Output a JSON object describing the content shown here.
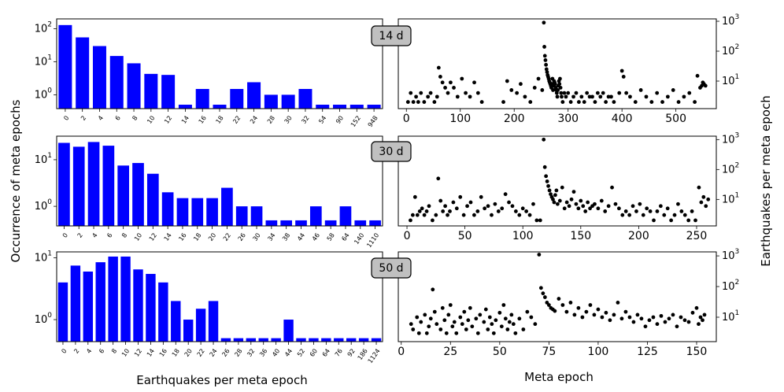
{
  "labels": {
    "left_ylabel": "Occurrence of meta epochs",
    "right_ylabel": "Earthquakes per meta epoch",
    "left_xlabel": "Earthquakes per meta epoch",
    "right_xlabel": "Meta epoch"
  },
  "colors": {
    "bar": "#0000ff",
    "point": "#000000",
    "badge": "#c0c0c0"
  },
  "chart_data": [
    {
      "type": "bar",
      "scale": "log",
      "ylim": [
        0.38,
        200
      ],
      "panel_label": "14 d",
      "categories": [
        "0",
        "2",
        "4",
        "6",
        "8",
        "10",
        "12",
        "14",
        "16",
        "18",
        "22",
        "24",
        "28",
        "30",
        "32",
        "54",
        "90",
        "152",
        "948"
      ],
      "values": [
        130,
        55,
        30,
        15,
        9,
        4.3,
        4,
        0.5,
        1.5,
        0.5,
        1.5,
        2.4,
        1,
        1,
        1.5,
        0.5,
        0.5,
        0.5,
        0.5
      ],
      "yticks": [
        {
          "label": "10",
          "exp": "0",
          "v": 1
        },
        {
          "label": "10",
          "exp": "1",
          "v": 10
        },
        {
          "label": "10",
          "exp": "2",
          "v": 100
        }
      ]
    },
    {
      "type": "bar",
      "scale": "log",
      "ylim": [
        0.38,
        32
      ],
      "panel_label": "30 d",
      "categories": [
        "0",
        "2",
        "4",
        "6",
        "8",
        "10",
        "12",
        "14",
        "16",
        "18",
        "20",
        "22",
        "26",
        "30",
        "34",
        "38",
        "44",
        "46",
        "58",
        "64",
        "140",
        "1110"
      ],
      "values": [
        23,
        19,
        24,
        20,
        7.5,
        8.5,
        5,
        2,
        1.5,
        1.5,
        1.5,
        2.5,
        1,
        1,
        0.5,
        0.5,
        0.5,
        1,
        0.5,
        1,
        0.5,
        0.5
      ],
      "yticks": [
        {
          "label": "10",
          "exp": "0",
          "v": 1
        },
        {
          "label": "10",
          "exp": "1",
          "v": 10
        }
      ]
    },
    {
      "type": "bar",
      "scale": "log",
      "ylim": [
        0.44,
        12.5
      ],
      "categories": [
        "0",
        "2",
        "4",
        "6",
        "8",
        "10",
        "12",
        "14",
        "16",
        "18",
        "20",
        "22",
        "24",
        "26",
        "28",
        "32",
        "36",
        "40",
        "44",
        "52",
        "60",
        "64",
        "76",
        "92",
        "186",
        "1124"
      ],
      "values": [
        4,
        7.5,
        6,
        8.5,
        10.5,
        10.5,
        6.5,
        5.5,
        4,
        2,
        1,
        1.5,
        2,
        0.5,
        0.5,
        0.5,
        0.5,
        0.5,
        1,
        0.5,
        0.5,
        0.5,
        0.5,
        0.5,
        0.5,
        0.5
      ],
      "yticks": [
        {
          "label": "10",
          "exp": "0",
          "v": 1
        },
        {
          "label": "10",
          "exp": "1",
          "v": 10
        }
      ]
    },
    {
      "type": "scatter",
      "scale": "log",
      "xlim": [
        -15,
        575
      ],
      "ylim": [
        1.2,
        1200
      ],
      "xticks": [
        0,
        100,
        200,
        300,
        400,
        500
      ],
      "yticks": [
        {
          "label": "10",
          "exp": "1",
          "v": 10
        },
        {
          "label": "10",
          "exp": "2",
          "v": 100
        },
        {
          "label": "10",
          "exp": "3",
          "v": 1000
        }
      ],
      "x": [
        3,
        8,
        13,
        18,
        22,
        27,
        33,
        40,
        45,
        52,
        57,
        60,
        63,
        67,
        72,
        77,
        82,
        88,
        95,
        103,
        110,
        118,
        126,
        133,
        140,
        180,
        187,
        195,
        205,
        212,
        220,
        230,
        238,
        245,
        252,
        255,
        256,
        257,
        258,
        259,
        260,
        261,
        262,
        263,
        264,
        265,
        266,
        267,
        268,
        269,
        270,
        271,
        272,
        273,
        274,
        275,
        276,
        277,
        278,
        279,
        280,
        281,
        282,
        283,
        284,
        285,
        286,
        287,
        288,
        290,
        293,
        296,
        300,
        305,
        310,
        315,
        320,
        325,
        330,
        335,
        340,
        345,
        350,
        355,
        360,
        365,
        370,
        375,
        380,
        385,
        395,
        400,
        403,
        408,
        415,
        425,
        435,
        445,
        455,
        465,
        475,
        485,
        495,
        505,
        515,
        525,
        535,
        540,
        545,
        548,
        550,
        552,
        555
      ],
      "y": [
        2,
        4,
        2,
        3,
        2,
        4,
        2,
        3,
        4,
        2,
        3,
        28,
        14,
        9,
        6,
        4,
        9,
        6,
        3,
        12,
        4,
        3,
        9,
        4,
        2,
        2,
        10,
        5,
        4,
        8,
        3,
        2,
        6,
        12,
        5,
        900,
        140,
        70,
        50,
        35,
        25,
        20,
        16,
        14,
        12,
        10,
        9,
        8,
        7,
        6,
        8,
        12,
        5,
        7,
        10,
        9,
        8,
        6,
        5,
        4,
        3,
        5,
        7,
        10,
        8,
        12,
        6,
        4,
        3,
        2,
        4,
        3,
        4,
        2,
        3,
        4,
        2,
        3,
        2,
        4,
        3,
        3,
        2,
        4,
        3,
        4,
        2,
        3,
        3,
        2,
        4,
        22,
        14,
        4,
        3,
        2,
        5,
        3,
        2,
        4,
        2,
        3,
        5,
        2,
        3,
        4,
        2,
        15,
        6,
        7,
        9,
        8,
        7
      ]
    },
    {
      "type": "scatter",
      "scale": "log",
      "xlim": [
        -7.5,
        267
      ],
      "ylim": [
        1.3,
        1300
      ],
      "xticks": [
        0,
        50,
        100,
        150,
        200,
        250
      ],
      "yticks": [
        {
          "label": "10",
          "exp": "1",
          "v": 10
        },
        {
          "label": "10",
          "exp": "2",
          "v": 100
        },
        {
          "label": "10",
          "exp": "3",
          "v": 1000
        }
      ],
      "x": [
        3,
        5,
        7,
        9,
        11,
        13,
        15,
        17,
        19,
        22,
        25,
        27,
        29,
        31,
        33,
        35,
        37,
        40,
        43,
        46,
        49,
        52,
        55,
        58,
        61,
        64,
        67,
        70,
        73,
        76,
        79,
        82,
        85,
        88,
        91,
        94,
        97,
        100,
        103,
        106,
        109,
        112,
        115,
        118,
        119,
        120,
        121,
        122,
        123,
        124,
        125,
        126,
        127,
        128,
        129,
        130,
        132,
        134,
        136,
        138,
        140,
        142,
        144,
        146,
        148,
        150,
        152,
        154,
        156,
        158,
        160,
        162,
        165,
        168,
        171,
        174,
        177,
        180,
        183,
        186,
        189,
        192,
        195,
        198,
        201,
        204,
        207,
        210,
        213,
        216,
        219,
        222,
        225,
        228,
        231,
        234,
        237,
        240,
        243,
        246,
        249,
        252,
        254,
        256,
        258,
        260
      ],
      "y": [
        2,
        3,
        12,
        3,
        4,
        5,
        3,
        4,
        6,
        2,
        3,
        50,
        9,
        4,
        6,
        3,
        4,
        8,
        5,
        12,
        3,
        6,
        8,
        3,
        4,
        12,
        5,
        6,
        3,
        7,
        4,
        5,
        15,
        8,
        6,
        4,
        3,
        5,
        4,
        3,
        7,
        2,
        2,
        1000,
        120,
        60,
        40,
        28,
        20,
        15,
        12,
        10,
        8,
        14,
        20,
        7,
        9,
        25,
        5,
        8,
        6,
        10,
        18,
        7,
        5,
        9,
        6,
        4,
        8,
        5,
        6,
        7,
        5,
        9,
        4,
        6,
        25,
        7,
        5,
        3,
        4,
        3,
        6,
        4,
        7,
        3,
        5,
        4,
        2,
        4,
        6,
        3,
        5,
        2,
        3,
        7,
        4,
        3,
        2,
        4,
        2,
        25,
        8,
        12,
        6,
        10
      ]
    },
    {
      "type": "scatter",
      "scale": "log",
      "xlim": [
        -1.5,
        160
      ],
      "ylim": [
        1.6,
        1350
      ],
      "xticks": [
        0,
        25,
        50,
        75,
        100,
        125,
        150
      ],
      "yticks": [
        {
          "label": "10",
          "exp": "1",
          "v": 10
        },
        {
          "label": "10",
          "exp": "2",
          "v": 100
        },
        {
          "label": "10",
          "exp": "3",
          "v": 1000
        }
      ],
      "panel_label": "50 d",
      "x": [
        5,
        6,
        8,
        9,
        10,
        12,
        13,
        14,
        15,
        16,
        17,
        18,
        20,
        21,
        22,
        23,
        24,
        25,
        26,
        27,
        28,
        30,
        31,
        32,
        33,
        34,
        35,
        36,
        38,
        39,
        40,
        42,
        43,
        44,
        45,
        46,
        47,
        48,
        50,
        51,
        52,
        53,
        54,
        55,
        56,
        57,
        58,
        60,
        62,
        64,
        66,
        68,
        70,
        71,
        72,
        73,
        74,
        75,
        76,
        77,
        78,
        80,
        82,
        84,
        86,
        88,
        90,
        92,
        94,
        96,
        98,
        100,
        102,
        104,
        106,
        108,
        110,
        112,
        114,
        116,
        118,
        120,
        122,
        124,
        126,
        128,
        130,
        132,
        134,
        136,
        138,
        140,
        142,
        144,
        146,
        148,
        150,
        151,
        152,
        153,
        154
      ],
      "y": [
        6,
        4,
        10,
        3,
        7,
        12,
        3,
        5,
        9,
        80,
        15,
        6,
        4,
        20,
        8,
        3,
        12,
        25,
        5,
        7,
        3,
        10,
        6,
        15,
        4,
        8,
        20,
        5,
        9,
        3,
        12,
        7,
        18,
        4,
        10,
        6,
        3,
        8,
        14,
        5,
        25,
        9,
        4,
        7,
        12,
        6,
        3,
        9,
        4,
        15,
        10,
        6,
        1100,
        90,
        60,
        45,
        30,
        25,
        20,
        18,
        16,
        40,
        25,
        15,
        30,
        12,
        20,
        10,
        15,
        25,
        12,
        18,
        10,
        14,
        8,
        12,
        30,
        9,
        15,
        10,
        7,
        12,
        9,
        5,
        8,
        10,
        6,
        11,
        7,
        9,
        12,
        5,
        10,
        8,
        7,
        14,
        20,
        6,
        10,
        8,
        12
      ]
    }
  ]
}
